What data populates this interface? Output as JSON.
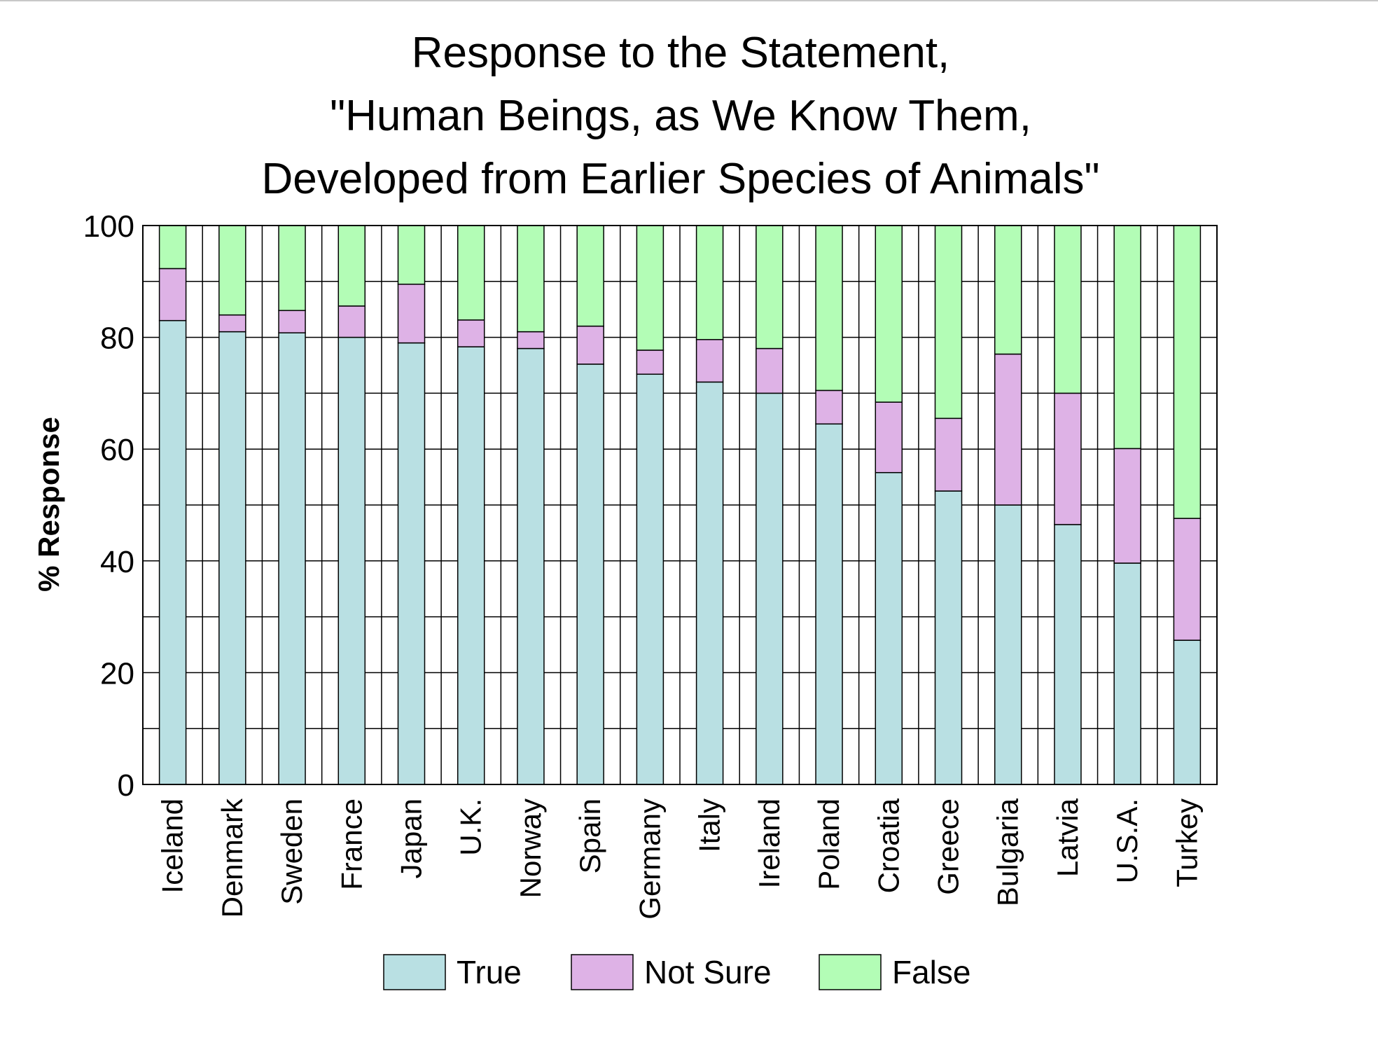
{
  "chart_data": {
    "type": "bar",
    "stacked": true,
    "title_lines": [
      "Response to the Statement,",
      "\"Human Beings, as We Know Them,",
      "Developed from Earlier Species of Animals\""
    ],
    "xlabel": "",
    "ylabel": "% Response",
    "ylim": [
      0,
      100
    ],
    "yticks": [
      "0",
      "20",
      "40",
      "60",
      "80",
      "100"
    ],
    "grid": true,
    "legend_position": "bottom",
    "categories": [
      "Iceland",
      "Denmark",
      "Sweden",
      "France",
      "Japan",
      "U.K.",
      "Norway",
      "Spain",
      "Germany",
      "Italy",
      "Ireland",
      "Poland",
      "Croatia",
      "Greece",
      "Bulgaria",
      "Latvia",
      "U.S.A.",
      "Turkey"
    ],
    "series": [
      {
        "name": "True",
        "color": "#b9e0e3",
        "values": [
          83,
          81,
          80.8,
          80,
          79,
          78.3,
          78,
          75.2,
          73.4,
          72,
          70,
          64.5,
          55.8,
          52.5,
          50,
          46.5,
          39.6,
          25.8
        ]
      },
      {
        "name": "Not Sure",
        "color": "#deb2e6",
        "values": [
          9.3,
          3,
          4,
          5.6,
          10.5,
          4.8,
          3,
          6.8,
          4.3,
          7.6,
          8,
          6,
          12.6,
          13,
          27,
          23.5,
          20.5,
          21.8
        ]
      },
      {
        "name": "False",
        "color": "#b3fdb6",
        "values": [
          7.7,
          16,
          15.2,
          14.4,
          10.5,
          16.9,
          19,
          18,
          22.3,
          20.4,
          22,
          29.5,
          31.6,
          34.5,
          23,
          30,
          39.9,
          52.4
        ]
      }
    ]
  }
}
